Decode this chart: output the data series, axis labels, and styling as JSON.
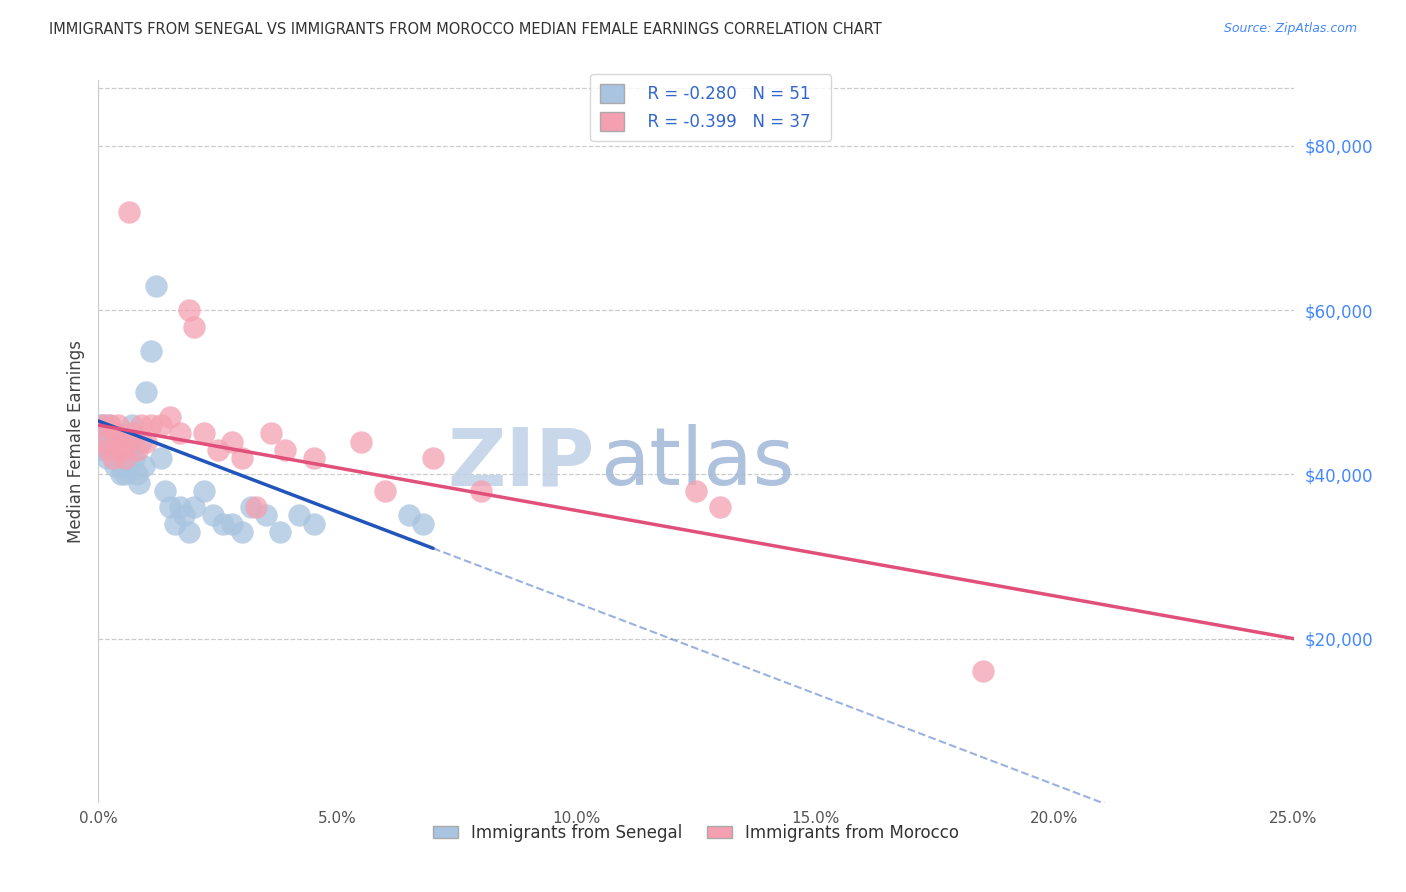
{
  "title": "IMMIGRANTS FROM SENEGAL VS IMMIGRANTS FROM MOROCCO MEDIAN FEMALE EARNINGS CORRELATION CHART",
  "source": "Source: ZipAtlas.com",
  "ylabel": "Median Female Earnings",
  "xlabel_ticks": [
    "0.0%",
    "5.0%",
    "10.0%",
    "15.0%",
    "20.0%",
    "25.0%"
  ],
  "xlabel_vals": [
    0.0,
    5.0,
    10.0,
    15.0,
    20.0,
    25.0
  ],
  "ylabel_ticks": [
    0,
    20000,
    40000,
    60000,
    80000
  ],
  "ylabel_labels": [
    "",
    "$20,000",
    "$40,000",
    "$60,000",
    "$80,000"
  ],
  "xlim": [
    0.0,
    25.0
  ],
  "ylim": [
    0,
    88000
  ],
  "senegal_R": -0.28,
  "senegal_N": 51,
  "morocco_R": -0.399,
  "morocco_N": 37,
  "senegal_color": "#a8c4e0",
  "morocco_color": "#f4a0b0",
  "senegal_line_color": "#2255bb",
  "morocco_line_color": "#e0507a",
  "watermark_color": "#ccdcf0",
  "senegal_x": [
    0.05,
    0.08,
    0.1,
    0.12,
    0.15,
    0.18,
    0.2,
    0.22,
    0.25,
    0.28,
    0.3,
    0.32,
    0.35,
    0.38,
    0.4,
    0.42,
    0.45,
    0.48,
    0.5,
    0.55,
    0.6,
    0.65,
    0.7,
    0.75,
    0.8,
    0.85,
    0.9,
    0.95,
    1.0,
    1.1,
    1.2,
    1.3,
    1.4,
    1.5,
    1.6,
    1.7,
    1.8,
    1.9,
    2.0,
    2.2,
    2.4,
    2.6,
    2.8,
    3.0,
    3.2,
    3.5,
    3.8,
    4.2,
    4.5,
    6.5,
    6.8
  ],
  "senegal_y": [
    46000,
    44000,
    43000,
    46000,
    45000,
    42000,
    44000,
    46000,
    44000,
    43000,
    43000,
    42000,
    41000,
    42000,
    44000,
    43000,
    42000,
    40000,
    41000,
    40000,
    41000,
    43000,
    46000,
    42000,
    40000,
    39000,
    44000,
    41000,
    50000,
    55000,
    63000,
    42000,
    38000,
    36000,
    34000,
    36000,
    35000,
    33000,
    36000,
    38000,
    35000,
    34000,
    34000,
    33000,
    36000,
    35000,
    33000,
    35000,
    34000,
    35000,
    34000
  ],
  "morocco_x": [
    0.1,
    0.15,
    0.2,
    0.25,
    0.3,
    0.35,
    0.4,
    0.45,
    0.5,
    0.55,
    0.6,
    0.65,
    0.7,
    0.8,
    0.9,
    1.0,
    1.1,
    1.3,
    1.5,
    1.7,
    1.9,
    2.0,
    2.2,
    2.5,
    2.8,
    3.0,
    3.3,
    3.6,
    3.9,
    4.5,
    5.5,
    6.0,
    7.0,
    8.0,
    12.5,
    13.0,
    18.5
  ],
  "morocco_y": [
    46000,
    44000,
    43000,
    46000,
    42000,
    45000,
    46000,
    44000,
    43000,
    42000,
    44000,
    72000,
    45000,
    43000,
    46000,
    44000,
    46000,
    46000,
    47000,
    45000,
    60000,
    58000,
    45000,
    43000,
    44000,
    42000,
    36000,
    45000,
    43000,
    42000,
    44000,
    38000,
    42000,
    38000,
    38000,
    36000,
    16000
  ],
  "senegal_trend_x0": 0.0,
  "senegal_trend_y0": 46500,
  "senegal_trend_x1": 7.0,
  "senegal_trend_y1": 31000,
  "morocco_trend_x0": 0.0,
  "morocco_trend_y0": 46000,
  "morocco_trend_x1": 25.0,
  "morocco_trend_y1": 20000
}
